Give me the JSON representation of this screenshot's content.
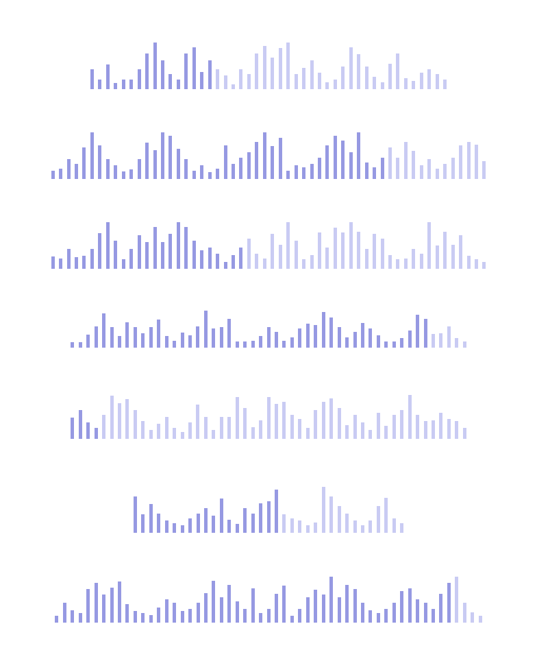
{
  "colors": {
    "played": "#9699e2",
    "unplayed": "#c9cbf3",
    "background": "#ffffff"
  },
  "waveforms": [
    {
      "name": "waveform-1",
      "progress": 0.34,
      "levels": [
        0.43,
        0.2,
        0.53,
        0.13,
        0.2,
        0.2,
        0.42,
        0.76,
        1.0,
        0.62,
        0.33,
        0.2,
        0.77,
        0.9,
        0.37,
        0.62,
        0.43,
        0.3,
        0.1,
        0.43,
        0.33,
        0.77,
        0.92,
        0.67,
        0.88,
        1.0,
        0.32,
        0.45,
        0.62,
        0.35,
        0.15,
        0.2,
        0.48,
        0.9,
        0.75,
        0.48,
        0.27,
        0.15,
        0.55,
        0.77,
        0.23,
        0.18,
        0.35,
        0.43,
        0.33,
        0.2
      ]
    },
    {
      "name": "waveform-2",
      "progress": 0.76,
      "levels": [
        0.18,
        0.22,
        0.42,
        0.32,
        0.68,
        1.0,
        0.72,
        0.42,
        0.3,
        0.16,
        0.2,
        0.42,
        0.78,
        0.62,
        1.0,
        0.92,
        0.65,
        0.42,
        0.18,
        0.3,
        0.15,
        0.22,
        0.72,
        0.32,
        0.45,
        0.57,
        0.8,
        1.0,
        0.7,
        0.88,
        0.18,
        0.3,
        0.25,
        0.32,
        0.45,
        0.72,
        0.92,
        0.82,
        0.57,
        1.0,
        0.35,
        0.25,
        0.45,
        0.68,
        0.45,
        0.8,
        0.6,
        0.3,
        0.42,
        0.22,
        0.32,
        0.45,
        0.72,
        0.8,
        0.74,
        0.38
      ]
    },
    {
      "name": "waveform-3",
      "progress": 0.45,
      "levels": [
        0.27,
        0.22,
        0.42,
        0.25,
        0.28,
        0.42,
        0.77,
        1.0,
        0.6,
        0.2,
        0.42,
        0.72,
        0.57,
        0.9,
        0.57,
        0.75,
        1.0,
        0.9,
        0.6,
        0.4,
        0.45,
        0.32,
        0.15,
        0.3,
        0.45,
        0.65,
        0.32,
        0.22,
        0.75,
        0.52,
        1.0,
        0.6,
        0.2,
        0.3,
        0.78,
        0.45,
        0.88,
        0.78,
        1.0,
        0.8,
        0.42,
        0.75,
        0.65,
        0.3,
        0.2,
        0.22,
        0.42,
        0.33,
        1.0,
        0.5,
        0.8,
        0.52,
        0.72,
        0.28,
        0.2,
        0.15
      ]
    },
    {
      "name": "waveform-4",
      "progress": 0.9,
      "levels": [
        0.15,
        0.15,
        0.35,
        0.57,
        0.9,
        0.55,
        0.3,
        0.68,
        0.55,
        0.38,
        0.55,
        0.75,
        0.3,
        0.18,
        0.4,
        0.33,
        0.57,
        0.98,
        0.5,
        0.55,
        0.76,
        0.16,
        0.16,
        0.18,
        0.3,
        0.55,
        0.42,
        0.18,
        0.28,
        0.5,
        0.63,
        0.6,
        0.95,
        0.8,
        0.55,
        0.28,
        0.42,
        0.65,
        0.5,
        0.32,
        0.16,
        0.16,
        0.25,
        0.45,
        0.88,
        0.76,
        0.37,
        0.38,
        0.56,
        0.25,
        0.16
      ]
    },
    {
      "name": "waveform-5",
      "progress": 0.08,
      "levels": [
        0.48,
        0.65,
        0.38,
        0.25,
        0.55,
        0.98,
        0.82,
        0.9,
        0.65,
        0.4,
        0.2,
        0.35,
        0.5,
        0.25,
        0.15,
        0.38,
        0.78,
        0.5,
        0.2,
        0.5,
        0.5,
        0.95,
        0.7,
        0.27,
        0.42,
        0.96,
        0.8,
        0.85,
        0.55,
        0.45,
        0.25,
        0.65,
        0.85,
        0.92,
        0.7,
        0.32,
        0.55,
        0.38,
        0.2,
        0.6,
        0.3,
        0.55,
        0.65,
        1.0,
        0.55,
        0.4,
        0.42,
        0.6,
        0.45,
        0.4,
        0.25
      ]
    },
    {
      "name": "waveform-6",
      "progress": 0.55,
      "levels": [
        0.76,
        0.38,
        0.6,
        0.4,
        0.25,
        0.2,
        0.15,
        0.3,
        0.4,
        0.52,
        0.35,
        0.71,
        0.27,
        0.18,
        0.52,
        0.4,
        0.62,
        0.65,
        0.9,
        0.38,
        0.3,
        0.25,
        0.15,
        0.22,
        0.95,
        0.75,
        0.55,
        0.4,
        0.25,
        0.15,
        0.25,
        0.55,
        0.73,
        0.3,
        0.2
      ]
    },
    {
      "name": "waveform-7",
      "progress": 0.93,
      "levels": [
        0.15,
        0.42,
        0.27,
        0.2,
        0.72,
        0.85,
        0.6,
        0.75,
        0.88,
        0.4,
        0.25,
        0.2,
        0.16,
        0.32,
        0.5,
        0.42,
        0.25,
        0.3,
        0.42,
        0.63,
        0.9,
        0.55,
        0.81,
        0.45,
        0.3,
        0.73,
        0.2,
        0.3,
        0.62,
        0.8,
        0.15,
        0.3,
        0.55,
        0.7,
        0.6,
        0.98,
        0.55,
        0.81,
        0.72,
        0.42,
        0.27,
        0.2,
        0.3,
        0.42,
        0.68,
        0.74,
        0.5,
        0.42,
        0.3,
        0.62,
        0.85,
        0.98,
        0.42,
        0.22,
        0.15
      ]
    }
  ]
}
